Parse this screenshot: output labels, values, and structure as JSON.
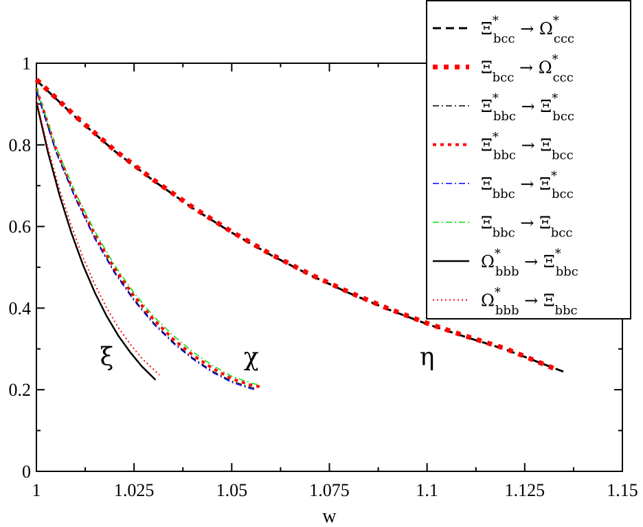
{
  "chart_data": {
    "type": "line",
    "xlabel": "w",
    "ylabel": "",
    "xlim": [
      1.0,
      1.15
    ],
    "ylim": [
      0.0,
      1.0
    ],
    "x_ticks": [
      "1",
      "1.025",
      "1.05",
      "1.075",
      "1.1",
      "1.125",
      "1.15"
    ],
    "y_ticks": [
      "0",
      "0.2",
      "0.4",
      "0.6",
      "0.8",
      "1"
    ],
    "grid": false,
    "legend_position": "top-right",
    "curve_labels": [
      {
        "text": "ξ",
        "x": 1.018,
        "y": 0.28
      },
      {
        "text": "χ",
        "x": 1.055,
        "y": 0.28
      },
      {
        "text": "η",
        "x": 1.1,
        "y": 0.28
      }
    ],
    "series": [
      {
        "name_main": "Ξ",
        "name_sup": "*",
        "name_sub": "bcc",
        "arrow": "→",
        "name2_main": "Ω",
        "name2_sup": "*",
        "name2_sub": "ccc",
        "color": "#000000",
        "dash": "12,7",
        "width": 3,
        "group": "eta",
        "x": [
          1.0,
          1.01,
          1.02,
          1.03,
          1.04,
          1.05,
          1.06,
          1.07,
          1.08,
          1.09,
          1.1,
          1.11,
          1.12,
          1.13,
          1.1353
        ],
        "y": [
          0.958,
          0.868,
          0.785,
          0.712,
          0.645,
          0.585,
          0.53,
          0.481,
          0.437,
          0.397,
          0.361,
          0.329,
          0.299,
          0.262,
          0.243
        ]
      },
      {
        "name_main": "Ξ",
        "name_sup": "",
        "name_sub": "bcc",
        "arrow": "→",
        "name2_main": "Ω",
        "name2_sup": "*",
        "name2_sub": "ccc",
        "color": "#ff0000",
        "dash": "7,9",
        "width": 7,
        "group": "eta",
        "x": [
          1.0,
          1.01,
          1.02,
          1.03,
          1.04,
          1.05,
          1.06,
          1.07,
          1.08,
          1.09,
          1.1,
          1.11,
          1.12,
          1.13,
          1.1325
        ],
        "y": [
          0.96,
          0.87,
          0.787,
          0.714,
          0.647,
          0.587,
          0.532,
          0.483,
          0.439,
          0.399,
          0.363,
          0.331,
          0.301,
          0.262,
          0.252
        ]
      },
      {
        "name_main": "Ξ",
        "name_sup": "*",
        "name_sub": "bbc",
        "arrow": "→",
        "name2_main": "Ξ",
        "name2_sup": "*",
        "name2_sub": "bcc",
        "color": "#000000",
        "dash": "9,4,2,4",
        "width": 1.5,
        "group": "chi",
        "x": [
          1.0,
          1.005,
          1.01,
          1.015,
          1.02,
          1.025,
          1.03,
          1.035,
          1.04,
          1.045,
          1.05,
          1.055,
          1.0565
        ],
        "y": [
          0.935,
          0.785,
          0.67,
          0.572,
          0.489,
          0.421,
          0.364,
          0.317,
          0.278,
          0.246,
          0.221,
          0.205,
          0.203
        ]
      },
      {
        "name_main": "Ξ",
        "name_sup": "*",
        "name_sub": "bbc",
        "arrow": "→",
        "name2_main": "Ξ",
        "name2_sup": "",
        "name2_sub": "bcc",
        "color": "#ff0000",
        "dash": "5,6",
        "width": 4,
        "group": "chi",
        "x": [
          1.0,
          1.005,
          1.01,
          1.015,
          1.02,
          1.025,
          1.03,
          1.035,
          1.04,
          1.045,
          1.05,
          1.055,
          1.0575
        ],
        "y": [
          0.938,
          0.79,
          0.676,
          0.579,
          0.497,
          0.429,
          0.372,
          0.324,
          0.285,
          0.253,
          0.227,
          0.211,
          0.207
        ]
      },
      {
        "name_main": "Ξ",
        "name_sup": "",
        "name_sub": "bbc",
        "arrow": "→",
        "name2_main": "Ξ",
        "name2_sup": "*",
        "name2_sub": "bcc",
        "color": "#0000ff",
        "dash": "9,4,2,4",
        "width": 1.5,
        "group": "chi",
        "x": [
          1.0,
          1.005,
          1.01,
          1.015,
          1.02,
          1.025,
          1.03,
          1.035,
          1.04,
          1.045,
          1.05,
          1.055,
          1.0565
        ],
        "y": [
          0.932,
          0.782,
          0.667,
          0.569,
          0.486,
          0.418,
          0.361,
          0.314,
          0.275,
          0.243,
          0.218,
          0.202,
          0.2
        ]
      },
      {
        "name_main": "Ξ",
        "name_sup": "",
        "name_sub": "bbc",
        "arrow": "→",
        "name2_main": "Ξ",
        "name2_sup": "",
        "name2_sub": "bcc",
        "color": "#00dd00",
        "dash": "9,4,2,4",
        "width": 1.5,
        "group": "chi",
        "x": [
          1.0,
          1.005,
          1.01,
          1.015,
          1.02,
          1.025,
          1.03,
          1.035,
          1.04,
          1.045,
          1.05,
          1.055,
          1.0565
        ],
        "y": [
          0.94,
          0.795,
          0.682,
          0.587,
          0.505,
          0.437,
          0.38,
          0.333,
          0.293,
          0.26,
          0.233,
          0.216,
          0.213
        ]
      },
      {
        "name_main": "Ω",
        "name_sup": "*",
        "name_sub": "bbb",
        "arrow": "→",
        "name2_main": "Ξ",
        "name2_sup": "*",
        "name2_sub": "bbc",
        "color": "#000000",
        "dash": "",
        "width": 2.5,
        "group": "xi",
        "x": [
          1.0,
          1.003,
          1.006,
          1.009,
          1.012,
          1.015,
          1.018,
          1.021,
          1.024,
          1.027,
          1.0305
        ],
        "y": [
          0.905,
          0.78,
          0.674,
          0.583,
          0.504,
          0.437,
          0.38,
          0.332,
          0.292,
          0.257,
          0.224
        ]
      },
      {
        "name_main": "Ω",
        "name_sup": "*",
        "name_sub": "bbb",
        "arrow": "→",
        "name2_main": "Ξ",
        "name2_sup": "",
        "name2_sub": "bbc",
        "color": "#ff0000",
        "dash": "2,4",
        "width": 2,
        "group": "xi",
        "x": [
          1.0,
          1.003,
          1.006,
          1.009,
          1.012,
          1.015,
          1.018,
          1.021,
          1.024,
          1.027,
          1.0315
        ],
        "y": [
          0.91,
          0.79,
          0.688,
          0.6,
          0.523,
          0.457,
          0.4,
          0.352,
          0.312,
          0.277,
          0.236
        ]
      }
    ]
  }
}
